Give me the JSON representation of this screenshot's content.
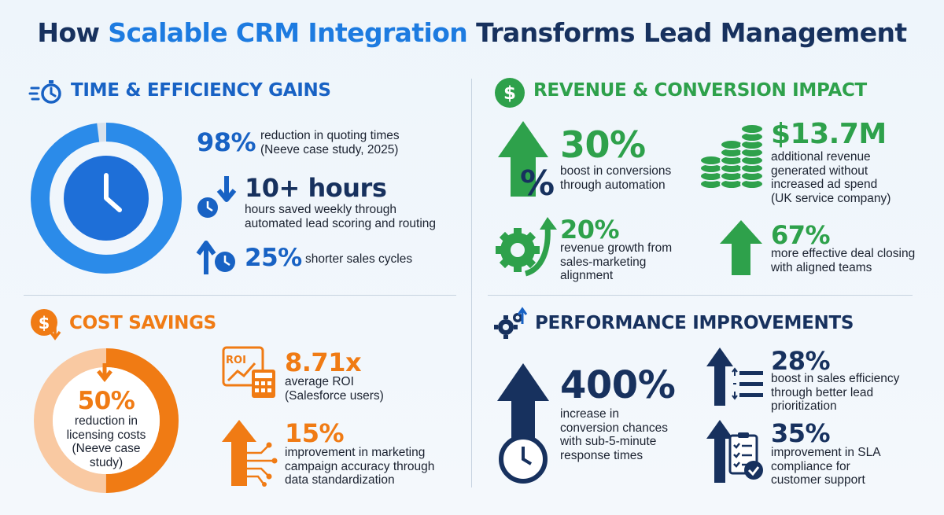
{
  "title": {
    "part1": "How ",
    "part2": "Scalable CRM Integration",
    "part3": " Transforms Lead Management"
  },
  "colors": {
    "navy": "#17315e",
    "blue": "#1862c4",
    "green": "#2ea14b",
    "orange": "#f07b14"
  },
  "time": {
    "heading": "TIME & EFFICIENCY GAINS",
    "icon": "stopwatch-icon",
    "donut_fraction": 0.98,
    "stat1": {
      "value": "98%",
      "line1": "reduction in quoting times",
      "line2": "(Neeve case study, 2025)"
    },
    "stat2": {
      "value": "10+ hours",
      "line1": "hours saved weekly through",
      "line2": "automated lead scoring and routing"
    },
    "stat3": {
      "value": "25%",
      "text": "shorter sales cycles"
    }
  },
  "revenue": {
    "heading": "REVENUE & CONVERSION IMPACT",
    "icon": "dollar-circle-icon",
    "stat1": {
      "value": "30%",
      "line1": "boost in conversions",
      "line2": "through automation"
    },
    "stat2": {
      "value": "$13.7M",
      "line1": "additional revenue",
      "line2": "generated without",
      "line3": "increased ad spend",
      "line4": "(UK service company)"
    },
    "stat3": {
      "value": "20%",
      "line1": "revenue growth from",
      "line2": "sales-marketing",
      "line3": "alignment"
    },
    "stat4": {
      "value": "67%",
      "line1": "more effective deal closing",
      "line2": "with aligned teams"
    }
  },
  "cost": {
    "heading": "COST SAVINGS",
    "icon": "dollar-down-icon",
    "donut_fraction": 0.5,
    "stat1": {
      "value": "50%",
      "line1": "reduction in",
      "line2": "licensing costs",
      "line3": "(Neeve case",
      "line4": "study)"
    },
    "stat2": {
      "value": "8.71x",
      "line1": "average ROI",
      "line2": "(Salesforce users)",
      "icon_label": "ROI"
    },
    "stat3": {
      "value": "15%",
      "line1": "improvement in marketing",
      "line2": "campaign accuracy through",
      "line3": "data standardization"
    }
  },
  "performance": {
    "heading": "PERFORMANCE IMPROVEMENTS",
    "icon": "gears-arrow-icon",
    "stat1": {
      "value": "400%",
      "line1": "increase in",
      "line2": "conversion chances",
      "line3": "with sub-5-minute",
      "line4": "response times"
    },
    "stat2": {
      "value": "28%",
      "line1": "boost in sales efficiency",
      "line2": "through better lead",
      "line3": "prioritization"
    },
    "stat3": {
      "value": "35%",
      "line1": "improvement in SLA",
      "line2": "compliance for",
      "line3": "customer support"
    }
  }
}
